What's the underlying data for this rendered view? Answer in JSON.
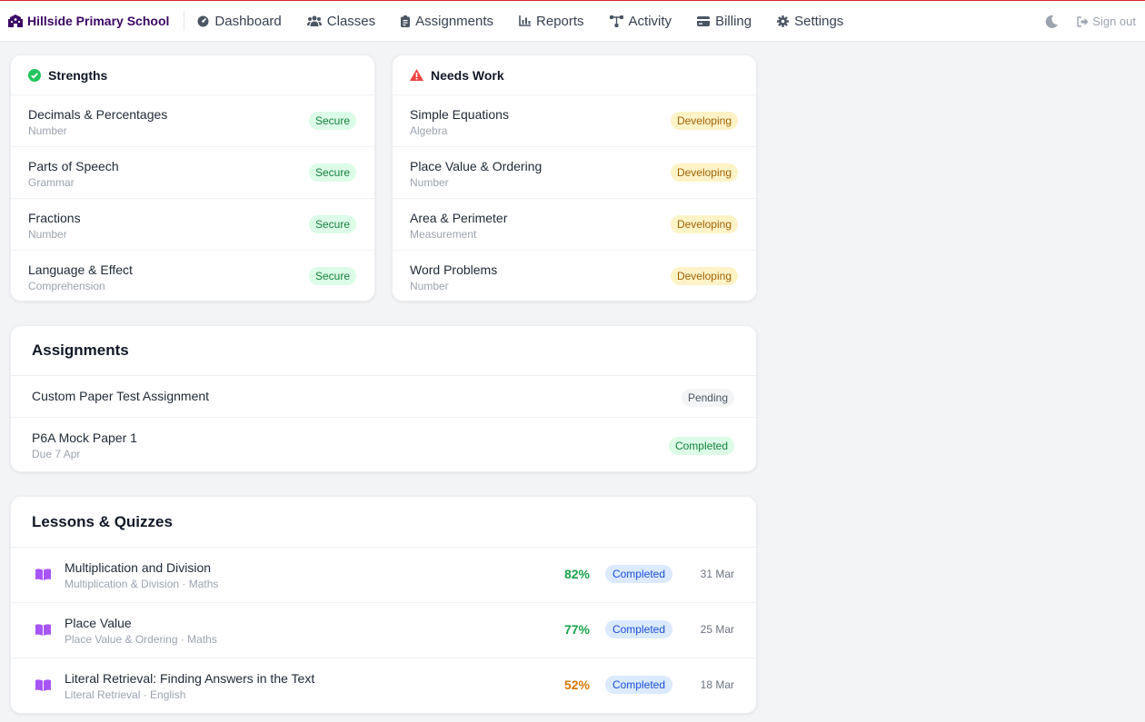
{
  "app": {
    "school_name": "Hillside Primary School"
  },
  "nav": {
    "items": [
      {
        "label": "Dashboard",
        "icon": "dashboard-icon"
      },
      {
        "label": "Classes",
        "icon": "users-icon"
      },
      {
        "label": "Assignments",
        "icon": "clipboard-icon"
      },
      {
        "label": "Reports",
        "icon": "chart-icon"
      },
      {
        "label": "Activity",
        "icon": "activity-icon"
      },
      {
        "label": "Billing",
        "icon": "credit-card-icon"
      },
      {
        "label": "Settings",
        "icon": "gear-icon"
      }
    ],
    "sign_out": "Sign out"
  },
  "strengths": {
    "title": "Strengths",
    "items": [
      {
        "name": "Decimals & Percentages",
        "category": "Number",
        "status": "Secure"
      },
      {
        "name": "Parts of Speech",
        "category": "Grammar",
        "status": "Secure"
      },
      {
        "name": "Fractions",
        "category": "Number",
        "status": "Secure"
      },
      {
        "name": "Language & Effect",
        "category": "Comprehension",
        "status": "Secure"
      }
    ]
  },
  "needs_work": {
    "title": "Needs Work",
    "items": [
      {
        "name": "Simple Equations",
        "category": "Algebra",
        "status": "Developing"
      },
      {
        "name": "Place Value & Ordering",
        "category": "Number",
        "status": "Developing"
      },
      {
        "name": "Area & Perimeter",
        "category": "Measurement",
        "status": "Developing"
      },
      {
        "name": "Word Problems",
        "category": "Number",
        "status": "Developing"
      }
    ]
  },
  "assignments": {
    "title": "Assignments",
    "items": [
      {
        "name": "Custom Paper Test Assignment",
        "status": "Pending"
      },
      {
        "name": "P6A Mock Paper 1",
        "due": "Due 7 Apr",
        "status": "Completed"
      }
    ]
  },
  "lessons": {
    "title": "Lessons & Quizzes",
    "items": [
      {
        "name": "Multiplication and Division",
        "meta": "Multiplication & Division · Maths",
        "score": "82%",
        "score_color": "#16a34a",
        "status": "Completed",
        "date": "31 Mar"
      },
      {
        "name": "Place Value",
        "meta": "Place Value & Ordering · Maths",
        "score": "77%",
        "score_color": "#16a34a",
        "status": "Completed",
        "date": "25 Mar"
      },
      {
        "name": "Literal Retrieval: Finding Answers in the Text",
        "meta": "Literal Retrieval · English",
        "score": "52%",
        "score_color": "#d97706",
        "status": "Completed",
        "date": "18 Mar"
      }
    ]
  },
  "colors": {
    "accent": "#3b0764",
    "top_line": "#dc2626",
    "book_icon": "#a855f7"
  }
}
